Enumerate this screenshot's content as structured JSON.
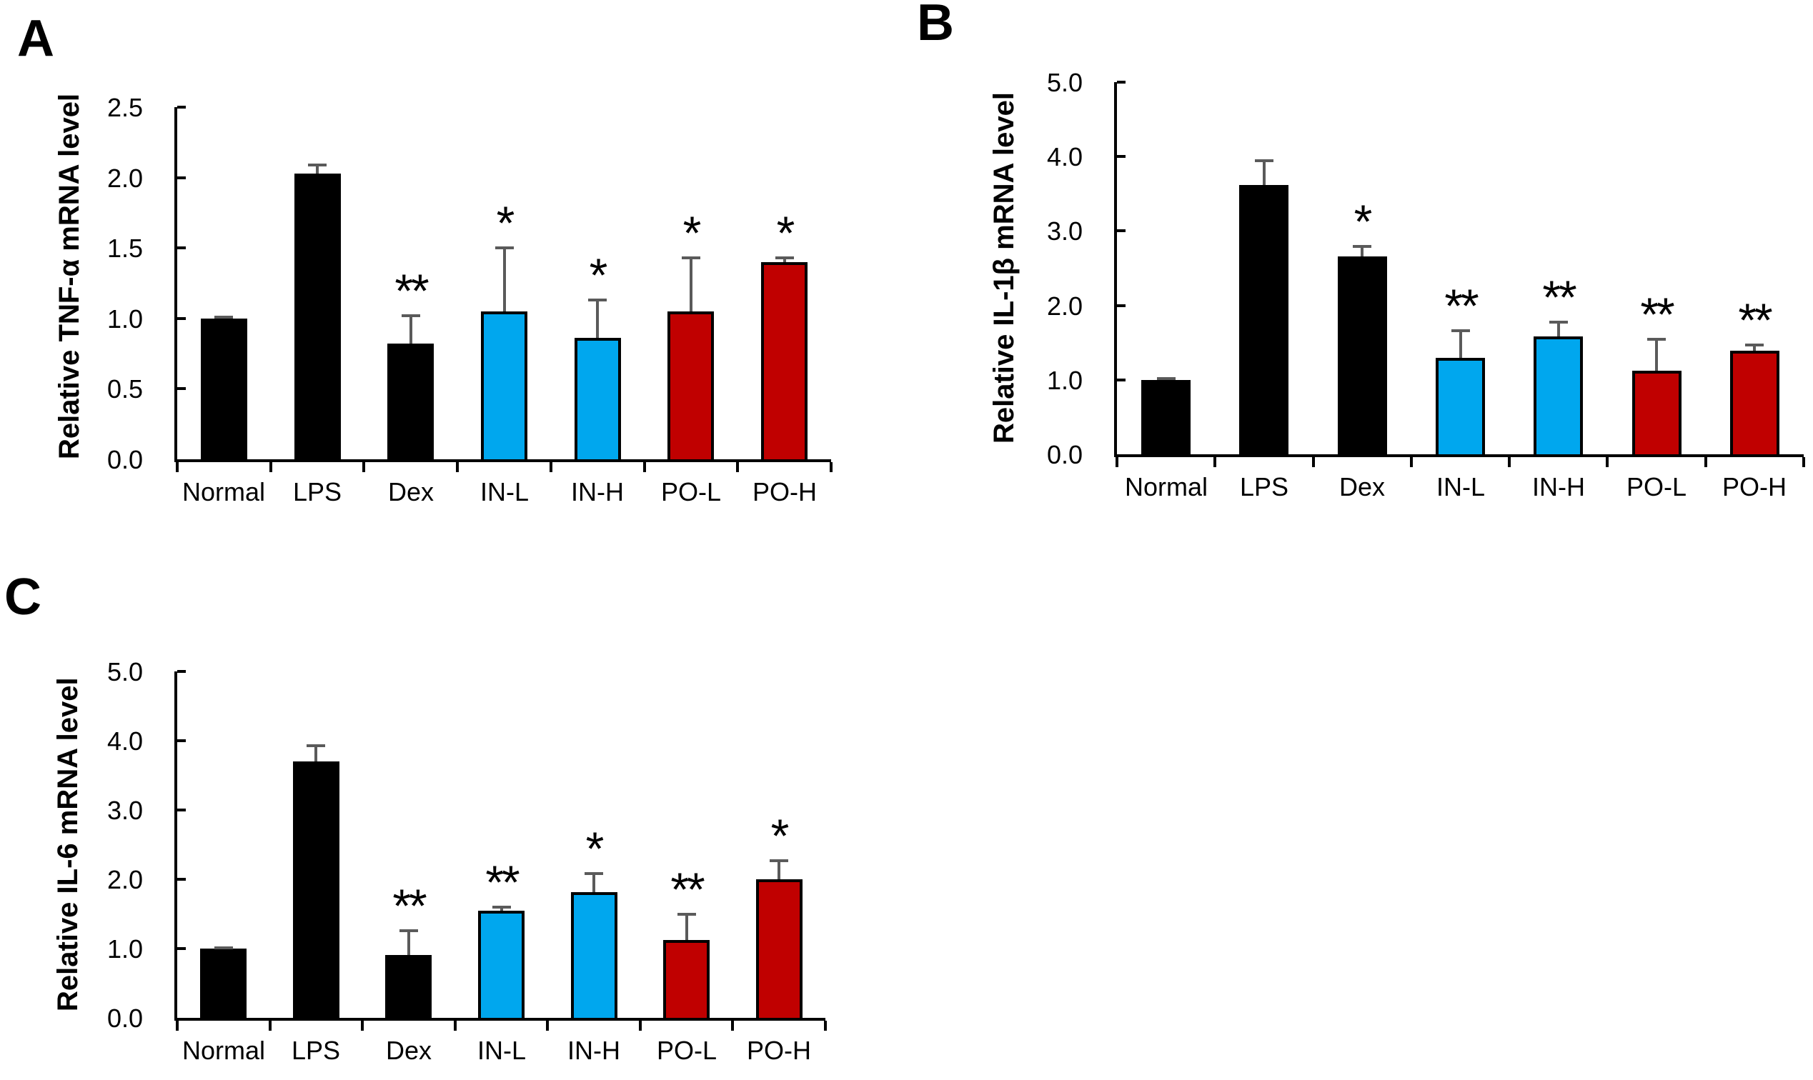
{
  "figure": {
    "background": "#ffffff",
    "bar_palette": {
      "control_black": "#000000",
      "intranasal_blue": "#00a7ee",
      "oral_red": "#c00000"
    },
    "error_bar_color": "#5a5a5a"
  },
  "chart_data": [
    {
      "type": "bar",
      "panel": "A",
      "ylabel": "Relative TNF-α mRNA level",
      "xlabel": "",
      "ylim": [
        0,
        2.5
      ],
      "ytick_labels": [
        "0.0",
        "0.5",
        "1.0",
        "1.5",
        "2.0",
        "2.5"
      ],
      "grid": false,
      "legend": "none",
      "categories": [
        "Normal",
        "LPS",
        "Dex",
        "IN-L",
        "IN-H",
        "PO-L",
        "PO-H"
      ],
      "values": [
        1.0,
        2.03,
        0.82,
        1.05,
        0.86,
        1.05,
        1.4
      ],
      "errors": [
        0.01,
        0.06,
        0.2,
        0.45,
        0.27,
        0.38,
        0.03
      ],
      "significance": [
        "",
        "",
        "**",
        "*",
        "*",
        "*",
        "*"
      ],
      "bar_colors": [
        "#000000",
        "#000000",
        "#000000",
        "#00a7ee",
        "#00a7ee",
        "#c00000",
        "#c00000"
      ]
    },
    {
      "type": "bar",
      "panel": "B",
      "ylabel": "Relative IL-1β mRNA level",
      "xlabel": "",
      "ylim": [
        0,
        5.0
      ],
      "ytick_labels": [
        "0.0",
        "1.0",
        "2.0",
        "3.0",
        "4.0",
        "5.0"
      ],
      "grid": false,
      "legend": "none",
      "categories": [
        "Normal",
        "LPS",
        "Dex",
        "IN-L",
        "IN-H",
        "PO-L",
        "PO-H"
      ],
      "values": [
        1.0,
        3.62,
        2.66,
        1.3,
        1.58,
        1.12,
        1.39
      ],
      "errors": [
        0.02,
        0.33,
        0.13,
        0.36,
        0.19,
        0.42,
        0.08
      ],
      "significance": [
        "",
        "",
        "*",
        "**",
        "**",
        "**",
        "**"
      ],
      "bar_colors": [
        "#000000",
        "#000000",
        "#000000",
        "#00a7ee",
        "#00a7ee",
        "#c00000",
        "#c00000"
      ]
    },
    {
      "type": "bar",
      "panel": "C",
      "ylabel": "Relative IL-6 mRNA level",
      "xlabel": "",
      "ylim": [
        0,
        5.0
      ],
      "ytick_labels": [
        "0.0",
        "1.0",
        "2.0",
        "3.0",
        "4.0",
        "5.0"
      ],
      "grid": false,
      "legend": "none",
      "categories": [
        "Normal",
        "LPS",
        "Dex",
        "IN-L",
        "IN-H",
        "PO-L",
        "PO-H"
      ],
      "values": [
        1.0,
        3.7,
        0.91,
        1.55,
        1.81,
        1.12,
        2.0
      ],
      "errors": [
        0.01,
        0.23,
        0.35,
        0.05,
        0.27,
        0.37,
        0.27
      ],
      "significance": [
        "",
        "",
        "**",
        "**",
        "*",
        "**",
        "*"
      ],
      "bar_colors": [
        "#000000",
        "#000000",
        "#000000",
        "#00a7ee",
        "#00a7ee",
        "#c00000",
        "#c00000"
      ]
    }
  ]
}
